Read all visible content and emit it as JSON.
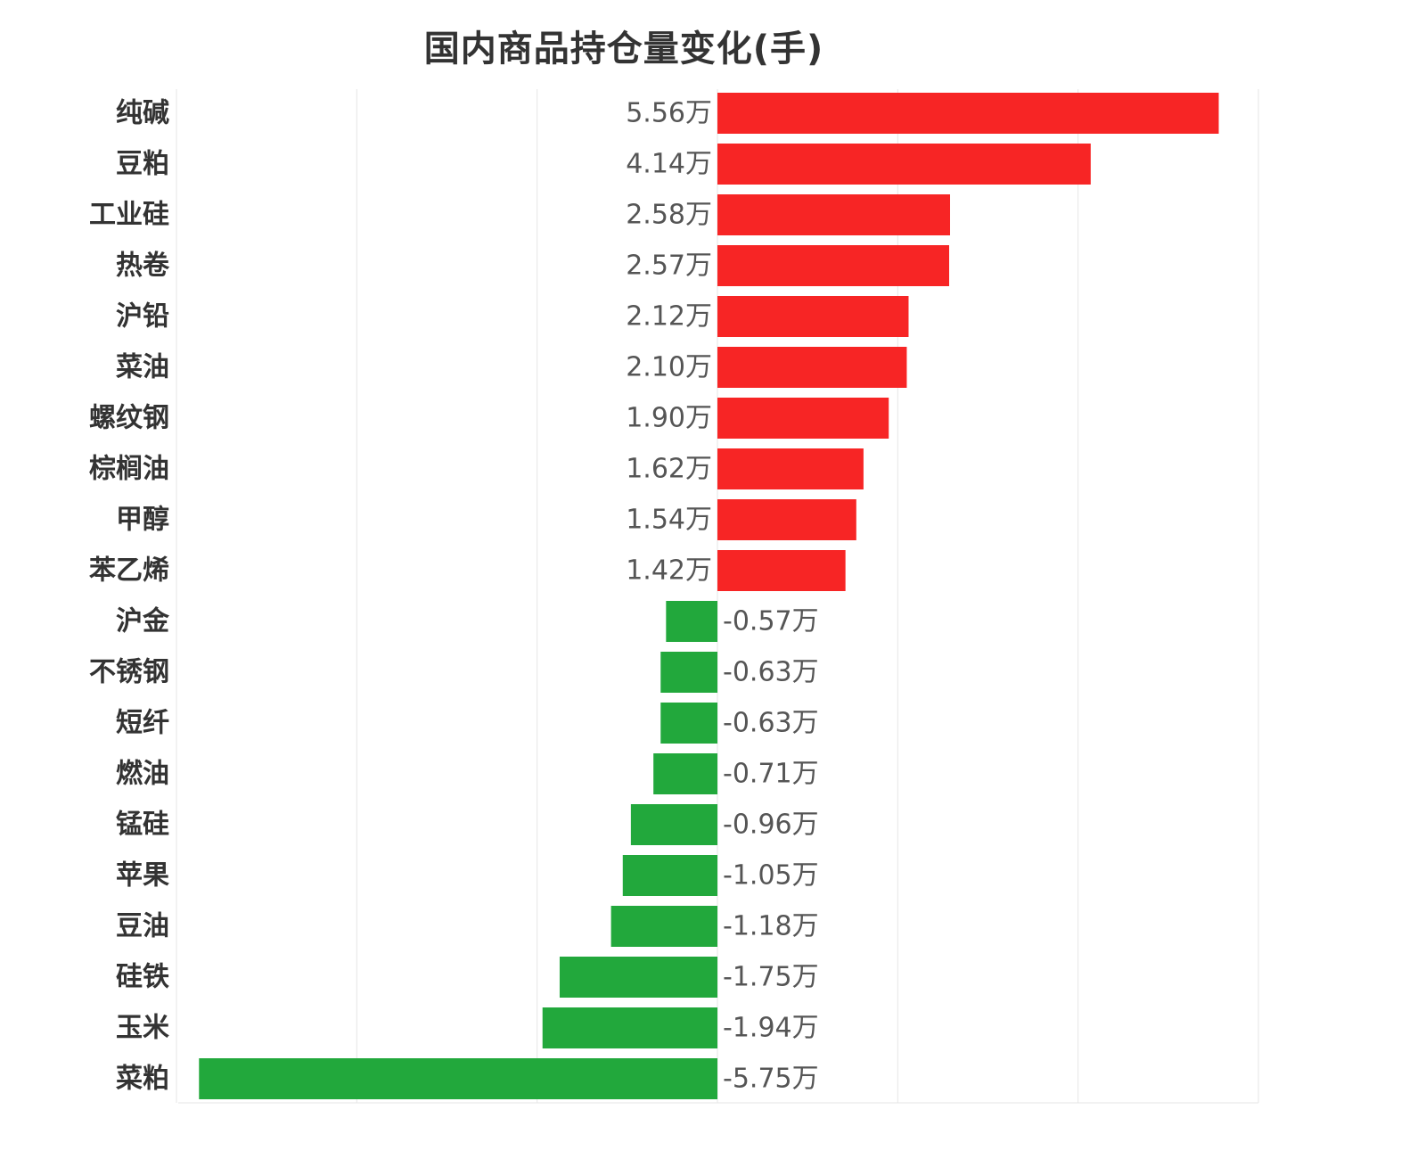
{
  "chart_data": {
    "type": "bar",
    "orientation": "horizontal",
    "title": "国内商品持仓量变化(手)",
    "unit_suffix": "万",
    "categories": [
      "纯碱",
      "豆粕",
      "工业硅",
      "热卷",
      "沪铅",
      "菜油",
      "螺纹钢",
      "棕榈油",
      "甲醇",
      "苯乙烯",
      "沪金",
      "不锈钢",
      "短纤",
      "燃油",
      "锰硅",
      "苹果",
      "豆油",
      "硅铁",
      "玉米",
      "菜粕"
    ],
    "values": [
      5.56,
      4.14,
      2.58,
      2.57,
      2.12,
      2.1,
      1.9,
      1.62,
      1.54,
      1.42,
      -0.57,
      -0.63,
      -0.63,
      -0.71,
      -0.96,
      -1.05,
      -1.18,
      -1.75,
      -1.94,
      -5.75
    ],
    "value_labels": [
      "5.56万",
      "4.14万",
      "2.58万",
      "2.57万",
      "2.12万",
      "2.10万",
      "1.90万",
      "1.62万",
      "1.54万",
      "1.42万",
      "-0.57万",
      "-0.63万",
      "-0.63万",
      "-0.71万",
      "-0.96万",
      "-1.05万",
      "-1.18万",
      "-1.75万",
      "-1.94万",
      "-5.75万"
    ],
    "xlim": [
      -6,
      6
    ],
    "grid": true,
    "colors": {
      "positive": "#f72525",
      "negative": "#22a83c",
      "grid": "#e6e6e6"
    }
  }
}
